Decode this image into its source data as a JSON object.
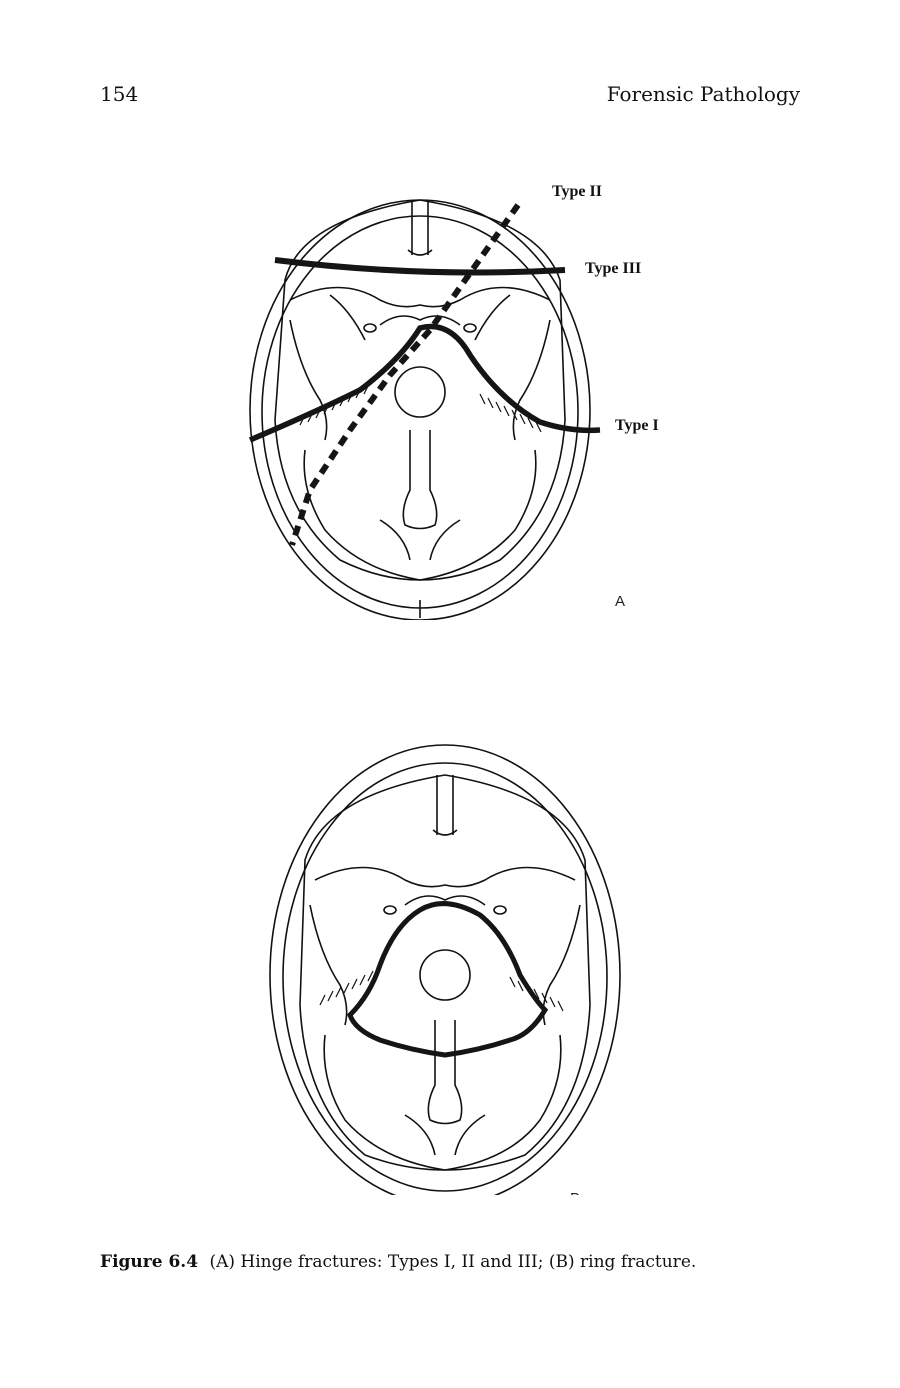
{
  "page": {
    "number": "154",
    "running_title": "Forensic Pathology"
  },
  "figure": {
    "panel_a": {
      "letter": "A",
      "labels": {
        "type1": "Type I",
        "type2": "Type II",
        "type3": "Type III"
      }
    },
    "panel_b": {
      "letter": "B"
    },
    "caption": {
      "label": "Figure 6.4",
      "text": "(A) Hinge fractures: Types I, II and III; (B) ring fracture."
    }
  },
  "colors": {
    "ink": "#111111",
    "fracture_line": "#151515"
  }
}
